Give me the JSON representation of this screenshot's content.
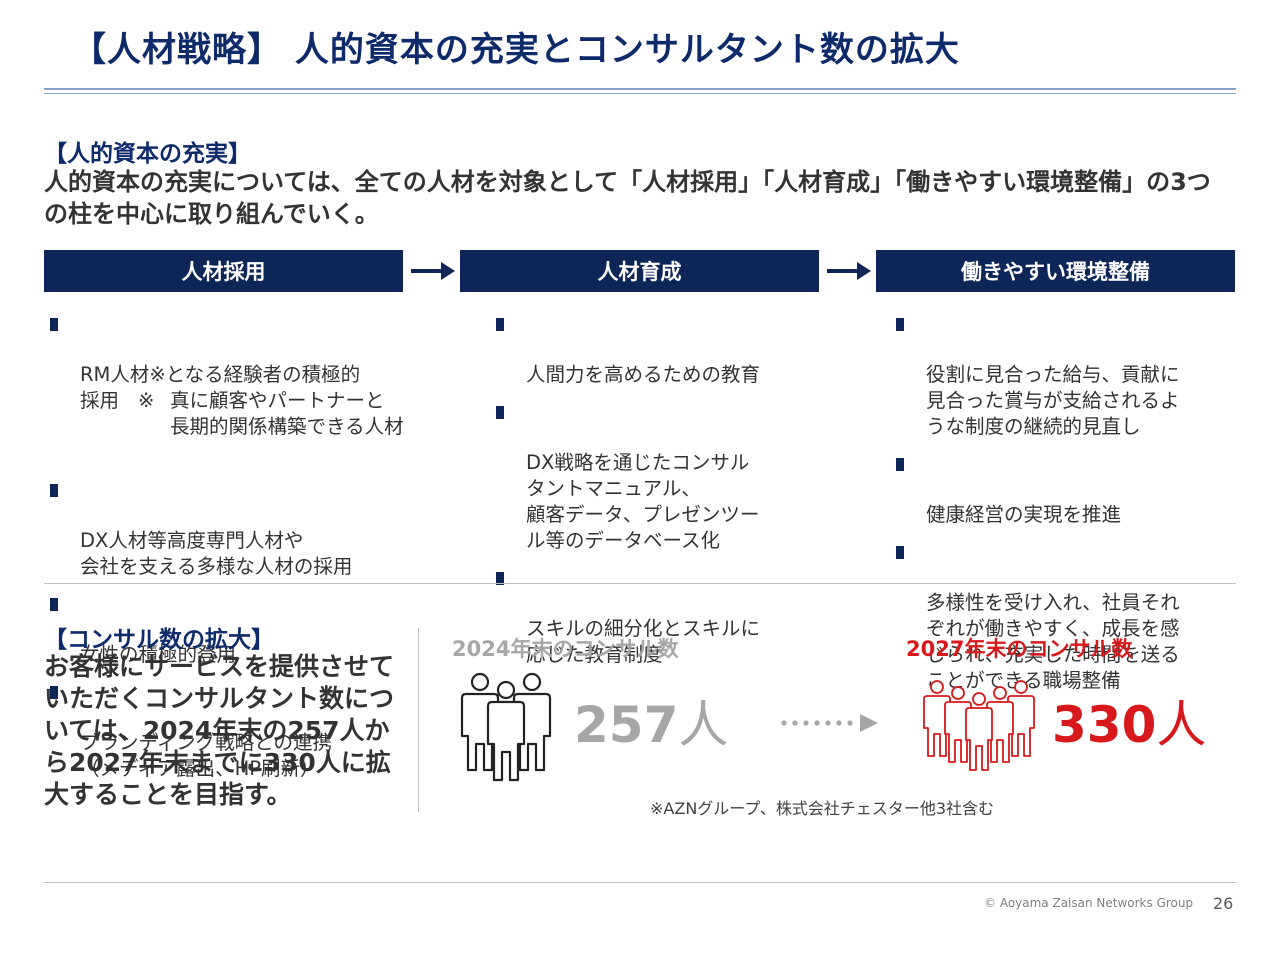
{
  "title": "【人材戦略】 人的資本の充実とコンサルタント数の拡大",
  "section1": {
    "heading": "【人的資本の充実】",
    "lead": "人的資本の充実については、全ての人材を対象として「人材採用」「人材育成」「働きやすい環境整備」の3つの柱を中心に取り組んでいく。",
    "pillars": [
      {
        "title": "人材採用",
        "item0_text": "RM人材※となる経験者の積極的\n採用",
        "item0_note_mark": "※",
        "item0_note": "真に顧客やパートナーと\n長期的関係構築できる人材",
        "items": [
          "DX人材等高度専門人材や\n会社を支える多様な人材の採用",
          "女性の積極的登用",
          "ブランディング戦略との連携\n（メディア露出、HP刷新）"
        ]
      },
      {
        "title": "人材育成",
        "items": [
          "人間力を高めるための教育",
          "DX戦略を通じたコンサル\nタントマニュアル、\n顧客データ、プレゼンツー\nル等のデータベース化",
          "スキルの細分化とスキルに\n応じた教育制度"
        ]
      },
      {
        "title": "働きやすい環境整備",
        "items": [
          "役割に見合った給与、貢献に\n見合った賞与が支給されるよ\nうな制度の継続的見直し",
          "健康経営の実現を推進",
          "多様性を受け入れ、社員それ\nぞれが働きやすく、成長を感\nじられ、充実した時間を送る\nことができる職場整備"
        ]
      }
    ]
  },
  "section2": {
    "heading": "【コンサル数の拡大】",
    "body": "お客様にサービスを提供させていただくコンサルタント数については、2024年末の257人から2027年末までに330人に拡大することを目指す。",
    "before": {
      "label": "2024年末のコンサル数",
      "value": "257",
      "unit": "人"
    },
    "after": {
      "label": "2027年末のコンサル数",
      "value": "330",
      "unit": "人"
    },
    "footnote": "※AZNグループ、株式会社チェスター他3社含む"
  },
  "footer": {
    "copyright": "© Aoyama Zaisan Networks Group",
    "page": "26"
  },
  "colors": {
    "navy": "#0d2557",
    "title_navy": "#0d2a6b",
    "gray": "#a6a6a6",
    "red": "#d7191c"
  }
}
